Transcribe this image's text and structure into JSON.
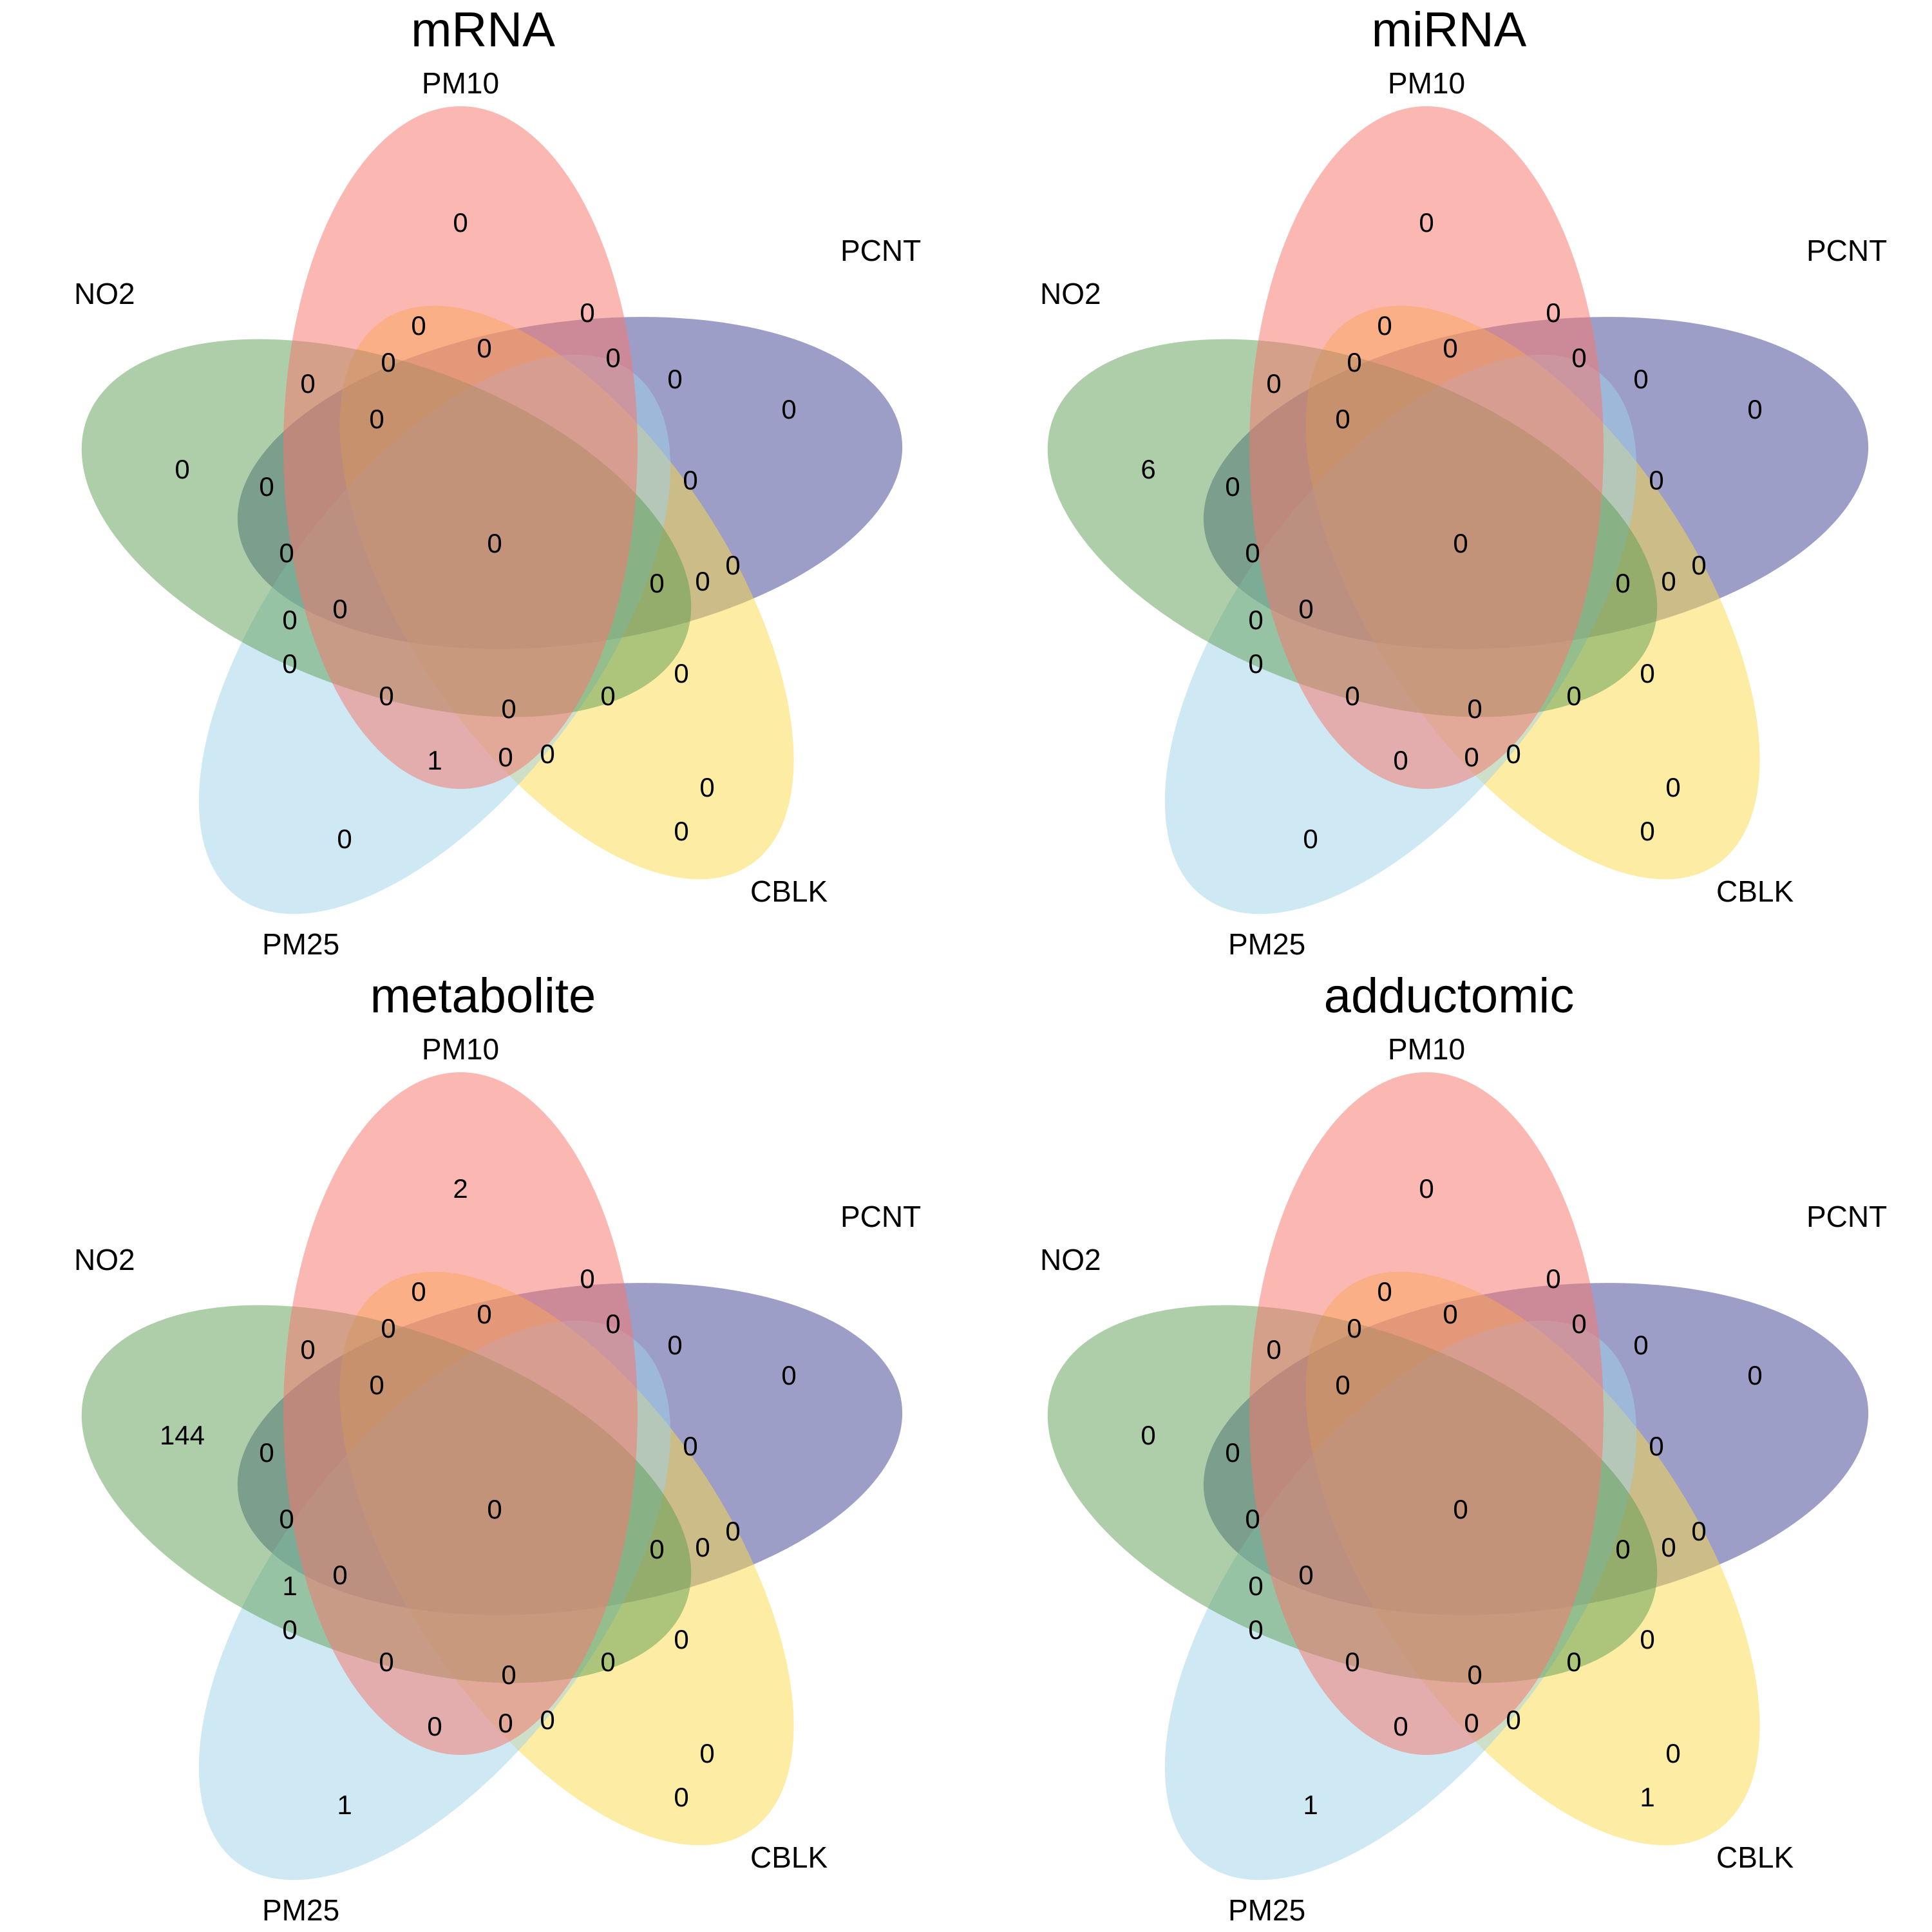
{
  "chart_data": [
    {
      "type": "venn",
      "title": "mRNA",
      "sets": [
        "PM10",
        "PCNT",
        "CBLK",
        "PM25",
        "NO2"
      ],
      "region_counts": [
        "0",
        "0",
        "0",
        "0",
        "0",
        "0",
        "0",
        "0",
        "0",
        "0",
        "0",
        "0",
        "0",
        "0",
        "0",
        "0",
        "0",
        "0",
        "0",
        "0",
        "0",
        "0",
        "0",
        "0",
        "0",
        "0",
        "0",
        "0",
        "0",
        "1",
        "0"
      ]
    },
    {
      "type": "venn",
      "title": "miRNA",
      "sets": [
        "PM10",
        "PCNT",
        "CBLK",
        "PM25",
        "NO2"
      ],
      "region_counts": [
        "0",
        "0",
        "0",
        "0",
        "6",
        "0",
        "0",
        "0",
        "0",
        "0",
        "0",
        "0",
        "0",
        "0",
        "0",
        "0",
        "0",
        "0",
        "0",
        "0",
        "0",
        "0",
        "0",
        "0",
        "0",
        "0",
        "0",
        "0",
        "0",
        "0",
        "0"
      ]
    },
    {
      "type": "venn",
      "title": "metabolite",
      "sets": [
        "PM10",
        "PCNT",
        "CBLK",
        "PM25",
        "NO2"
      ],
      "region_counts": [
        "2",
        "0",
        "0",
        "1",
        "144",
        "0",
        "0",
        "0",
        "0",
        "0",
        "0",
        "0",
        "0",
        "0",
        "0",
        "0",
        "0",
        "0",
        "0",
        "0",
        "0",
        "0",
        "0",
        "1",
        "0",
        "0",
        "0",
        "0",
        "0",
        "0",
        "0"
      ]
    },
    {
      "type": "venn",
      "title": "adductomic",
      "sets": [
        "PM10",
        "PCNT",
        "CBLK",
        "PM25",
        "NO2"
      ],
      "region_counts": [
        "0",
        "0",
        "0",
        "1",
        "0",
        "0",
        "0",
        "0",
        "0",
        "0",
        "0",
        "0",
        "0",
        "0",
        "0",
        "0",
        "0",
        "0",
        "0",
        "0",
        "1",
        "0",
        "0",
        "0",
        "0",
        "0",
        "0",
        "0",
        "0",
        "0",
        "0"
      ]
    }
  ],
  "colors": {
    "PM10": "#f8766d",
    "PCNT": "#3c3d8f",
    "CBLK": "#fcd948",
    "PM25": "#9dd2ea",
    "NO2": "#5c9e53"
  }
}
